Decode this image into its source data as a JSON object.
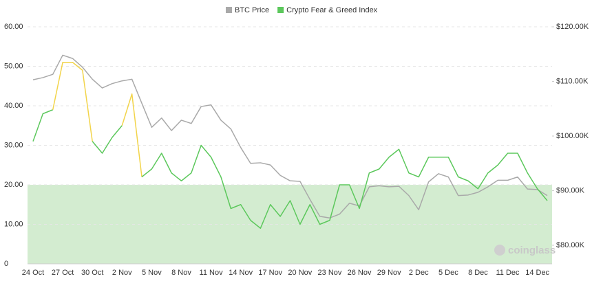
{
  "chart_data": {
    "type": "line",
    "legend": "top",
    "watermark": "coinglass",
    "grid": true,
    "band": {
      "range": [
        0,
        20
      ],
      "color": "#d3ecd0"
    },
    "categories": [
      "24 Oct",
      null,
      null,
      "27 Oct",
      null,
      null,
      "30 Oct",
      null,
      null,
      "2 Nov",
      null,
      null,
      "5 Nov",
      null,
      null,
      "8 Nov",
      null,
      null,
      "11 Nov",
      null,
      null,
      "14 Nov",
      null,
      null,
      "17 Nov",
      null,
      null,
      "20 Nov",
      null,
      null,
      "23 Nov",
      null,
      null,
      "26 Nov",
      null,
      null,
      "29 Nov",
      null,
      null,
      "2 Dec",
      null,
      null,
      "5 Dec",
      null,
      null,
      "8 Dec",
      null,
      null,
      "11 Dec",
      null,
      null,
      "14 Dec",
      null
    ],
    "ylim": [
      0,
      60
    ],
    "yticks": [
      0,
      {
        "value": 10,
        "label": "10.00"
      },
      {
        "value": 20,
        "label": "20.00"
      },
      {
        "value": 30,
        "label": "30.00"
      },
      {
        "value": 40,
        "label": "40.00"
      },
      {
        "value": 50,
        "label": "50.00"
      },
      {
        "value": 60,
        "label": "60.00"
      }
    ],
    "y2lim": [
      76600,
      120000
    ],
    "y2ticks": [
      {
        "value": 80000,
        "label": "$80.00K"
      },
      {
        "value": 90000,
        "label": "$90.00K"
      },
      {
        "value": 100000,
        "label": "$100.00K"
      },
      {
        "value": 110000,
        "label": "$110.00K"
      },
      {
        "value": 120000,
        "label": "$120.00K"
      }
    ],
    "series": [
      {
        "name": "BTC Price",
        "color": "#a9a9a9",
        "axis": "y2",
        "values": [
          110300,
          110700,
          111300,
          114800,
          114200,
          112600,
          110400,
          108800,
          109600,
          110100,
          110400,
          106000,
          101600,
          103300,
          101000,
          102900,
          102300,
          105400,
          105700,
          102900,
          101300,
          97900,
          95000,
          95100,
          94700,
          92800,
          91800,
          91700,
          88400,
          85300,
          85000,
          85700,
          87700,
          87200,
          90700,
          90900,
          90700,
          90800,
          89100,
          86500,
          91600,
          93100,
          92500,
          89100,
          89200,
          89700,
          90700,
          91900,
          91900,
          92500,
          90300,
          90200,
          89100
        ]
      },
      {
        "name": "Crypto Fear & Greed Index",
        "color": "#5cc85c",
        "values": [
          31,
          38,
          39,
          51,
          51,
          49,
          31,
          28,
          32,
          35,
          43,
          22,
          24,
          28,
          23,
          21,
          23,
          30,
          27,
          22,
          14,
          15,
          11,
          9,
          15,
          12,
          16,
          10,
          15,
          10,
          11,
          20,
          20,
          14,
          23,
          24,
          27,
          29,
          23,
          22,
          27,
          27,
          27,
          22,
          21,
          19,
          23,
          25,
          28,
          28,
          23,
          19,
          16
        ],
        "colors": [
          "#5cc85c",
          "#5cc85c",
          "#5cc85c",
          "#f2d44a",
          "#f2d44a",
          "#f2d44a",
          "#5cc85c",
          "#5cc85c",
          "#5cc85c",
          "#5cc85c",
          "#f2d44a",
          "#5cc85c",
          "#5cc85c",
          "#5cc85c",
          "#5cc85c",
          "#5cc85c",
          "#5cc85c",
          "#5cc85c",
          "#5cc85c",
          "#5cc85c",
          "#5cc85c",
          "#5cc85c",
          "#5cc85c",
          "#5cc85c",
          "#5cc85c",
          "#5cc85c",
          "#5cc85c",
          "#5cc85c",
          "#5cc85c",
          "#5cc85c",
          "#5cc85c",
          "#5cc85c",
          "#5cc85c",
          "#5cc85c",
          "#5cc85c",
          "#5cc85c",
          "#5cc85c",
          "#5cc85c",
          "#5cc85c",
          "#5cc85c",
          "#5cc85c",
          "#5cc85c",
          "#5cc85c",
          "#5cc85c",
          "#5cc85c",
          "#5cc85c",
          "#5cc85c",
          "#5cc85c",
          "#5cc85c",
          "#5cc85c",
          "#5cc85c",
          "#5cc85c",
          "#5cc85c"
        ]
      }
    ]
  }
}
